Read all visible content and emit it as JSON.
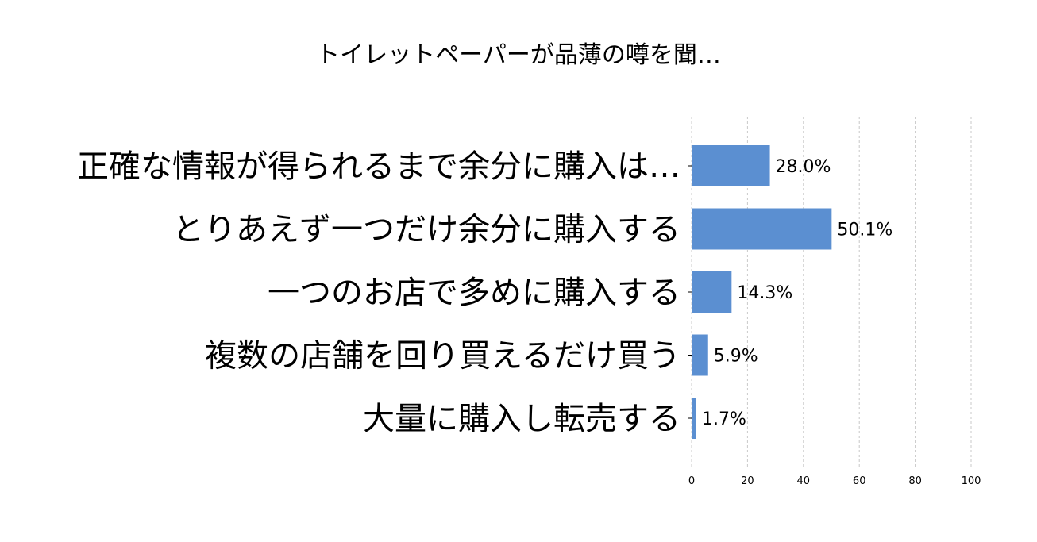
{
  "chart_data": {
    "type": "bar",
    "orientation": "horizontal",
    "title": "トイレットペーパーが品薄の噂を聞…",
    "categories": [
      "正確な情報が得られるまで余分に購入は…",
      "とりあえず一つだけ余分に購入する",
      "一つのお店で多めに購入する",
      "複数の店舗を回り買えるだけ買う",
      "大量に購入し転売する"
    ],
    "values": [
      28.0,
      50.1,
      14.3,
      5.9,
      1.7
    ],
    "value_labels": [
      "28.0%",
      "50.1%",
      "14.3%",
      "5.9%",
      "1.7%"
    ],
    "xlim": [
      0,
      100
    ],
    "xticks": [
      0,
      20,
      40,
      60,
      80,
      100
    ],
    "xtick_labels": [
      "0",
      "20",
      "40",
      "60",
      "80",
      "100"
    ],
    "grid": "vertical-dashed",
    "bar_color": "#5b8fd1",
    "xlabel": "",
    "ylabel": ""
  }
}
